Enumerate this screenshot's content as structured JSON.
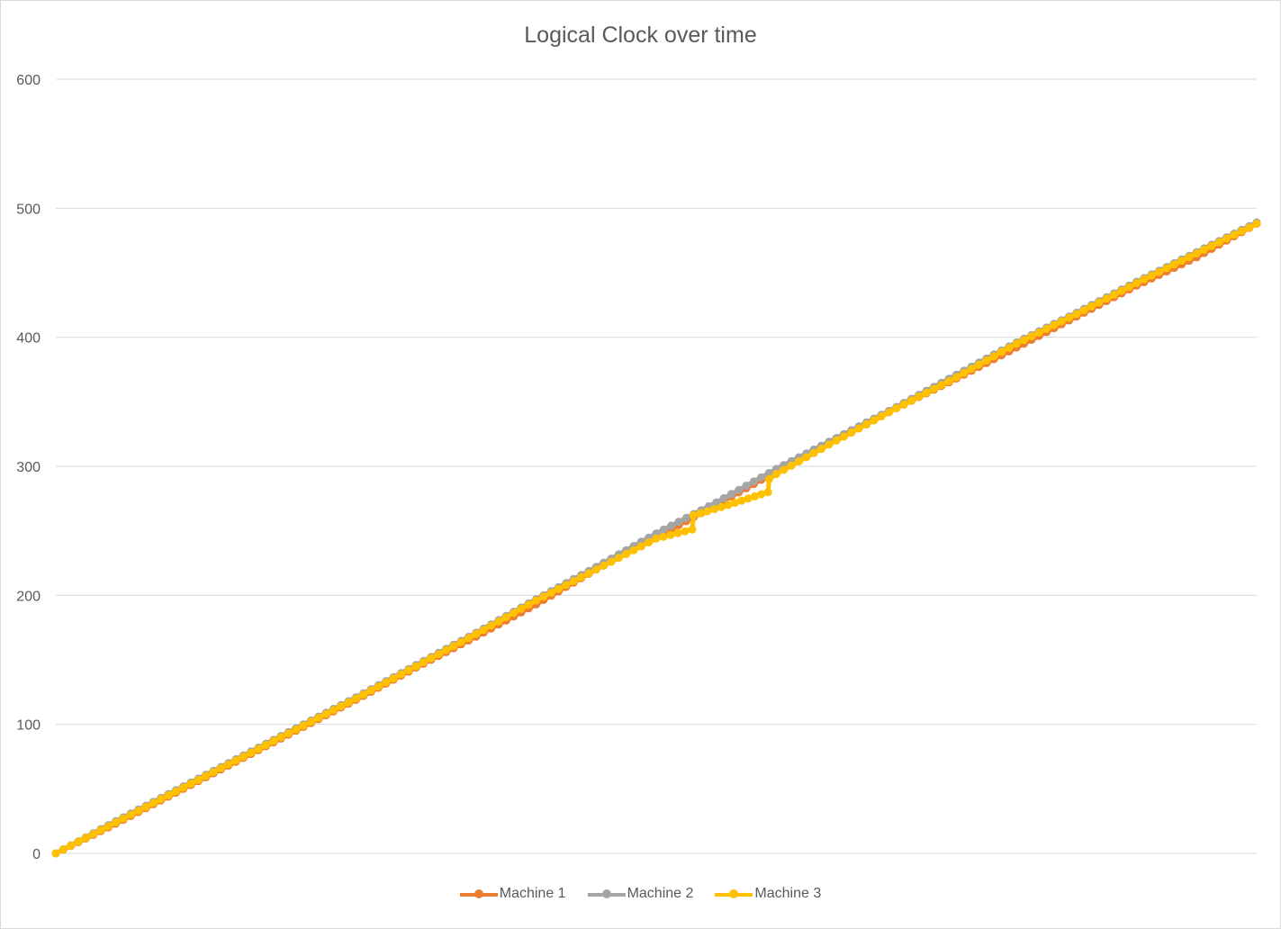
{
  "chart_data": {
    "type": "line",
    "title": "Logical Clock over time",
    "xlabel": "",
    "ylabel": "",
    "ylim": [
      0,
      600
    ],
    "yticks": [
      "0",
      "100",
      "200",
      "300",
      "400",
      "500",
      "600"
    ],
    "grid": "horizontal",
    "legend_position": "bottom",
    "x_range": [
      0,
      1000
    ],
    "series": [
      {
        "name": "Machine 1",
        "color": "#ED7D31",
        "x": [
          0,
          50,
          100,
          150,
          200,
          250,
          300,
          350,
          400,
          450,
          500,
          550,
          600,
          650,
          700,
          750,
          800,
          850,
          900,
          950,
          1000
        ],
        "values": [
          0,
          23,
          47,
          71,
          95,
          119,
          144,
          168,
          193,
          220,
          245,
          270,
          296,
          320,
          345,
          368,
          392,
          416,
          440,
          462,
          488
        ]
      },
      {
        "name": "Machine 2",
        "color": "#A5A5A5",
        "x": [
          0,
          50,
          100,
          150,
          200,
          250,
          300,
          350,
          400,
          450,
          500,
          550,
          600,
          650,
          700,
          750,
          800,
          850,
          900,
          950,
          1000
        ],
        "values": [
          0,
          25,
          49,
          73,
          97,
          121,
          146,
          171,
          197,
          222,
          248,
          272,
          298,
          322,
          346,
          371,
          396,
          419,
          443,
          466,
          489
        ]
      },
      {
        "name": "Machine 3",
        "color": "#FFC000",
        "x": [
          0,
          50,
          100,
          150,
          200,
          250,
          300,
          350,
          400,
          450,
          500,
          530,
          531,
          560,
          593,
          594,
          600,
          650,
          700,
          750,
          800,
          850,
          900,
          950,
          1000
        ],
        "values": [
          0,
          24,
          48,
          72,
          96,
          120,
          145,
          170,
          196,
          220,
          244,
          251,
          262,
          270,
          280,
          290,
          294,
          320,
          345,
          369,
          395,
          418,
          442,
          465,
          488
        ]
      }
    ]
  }
}
